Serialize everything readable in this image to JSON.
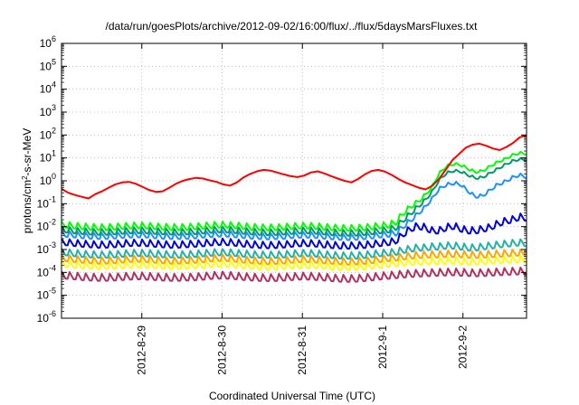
{
  "chart_data": {
    "type": "line",
    "title": "/data/run/goesPlots/archive/2012-09-02/16:00/flux/../flux/5daysMarsFluxes.txt",
    "xlabel": "Coordinated Universal Time (UTC)",
    "ylabel": "protons/cm2-s-sr-MeV",
    "ylabel_parts": {
      "pre": "protons/cm",
      "sup": "2",
      "post": "-s-sr-MeV"
    },
    "y_scale": "log",
    "ylim_exponents": [
      -6,
      6
    ],
    "y_tick_base": "10",
    "y_tick_exponents": [
      "-6",
      "-5",
      "-4",
      "-3",
      "-2",
      "-1",
      "0",
      "1",
      "2",
      "3",
      "4",
      "5",
      "6"
    ],
    "xlim_days": [
      "2012-08-28",
      "2012-09-02T19:00"
    ],
    "x_ticks": [
      "2012-8-29",
      "2012-8-30",
      "2012-8-31",
      "2012-9-1",
      "2012-9-2"
    ],
    "grid": true,
    "legend": "none",
    "series": [
      {
        "color": "#ff0000",
        "values": [
          0.45,
          0.3,
          0.24,
          0.2,
          0.17,
          0.26,
          0.35,
          0.5,
          0.7,
          0.85,
          0.9,
          0.75,
          0.55,
          0.4,
          0.33,
          0.35,
          0.5,
          0.75,
          1,
          1.2,
          1.35,
          1.25,
          1.05,
          0.9,
          0.7,
          0.62,
          0.85,
          1.4,
          2,
          2.6,
          3,
          2.8,
          2.3,
          1.9,
          1.6,
          1.45,
          1.7,
          2.3,
          2.6,
          2.1,
          1.6,
          1.25,
          1,
          0.85,
          1.2,
          1.9,
          2.7,
          3,
          2.5,
          1.8,
          1.2,
          0.85,
          0.65,
          0.5,
          0.42,
          0.6,
          1.2,
          3,
          8,
          15,
          28,
          38,
          42,
          34,
          26,
          22,
          30,
          45,
          80,
          95
        ]
      },
      {
        "color": "#00ff00",
        "base": [
          0.0095,
          0.0088,
          0.0082,
          0.0077,
          0.0074,
          0.0072,
          0.0072,
          0.0074,
          0.0078,
          0.0082,
          0.0085,
          0.0085,
          0.0082,
          0.0078,
          0.0075,
          0.0073,
          0.0072,
          0.0073,
          0.0076,
          0.008,
          0.0085,
          0.009,
          0.0092,
          0.009,
          0.0086,
          0.008,
          0.0075,
          0.0072,
          0.007,
          0.007,
          0.0072,
          0.0076,
          0.008,
          0.0083,
          0.0083,
          0.008,
          0.0075,
          0.0071,
          0.0068,
          0.0066,
          0.0066,
          0.0068,
          0.0072,
          0.0078,
          0.0085,
          0.009,
          0.012,
          0.03,
          0.06,
          0.1,
          0.2,
          0.5,
          2,
          4,
          5,
          4.5,
          3,
          2.2,
          2.5,
          4,
          6,
          8,
          12,
          15,
          14
        ],
        "amp": [
          1.8,
          1.8,
          1.8,
          1.8,
          1.8,
          1.8,
          1.8,
          1.8,
          1.8,
          1.8,
          1.8,
          1.8,
          1.8,
          1.8,
          1.8,
          1.8,
          1.8,
          1.8,
          1.8,
          1.8,
          1.8,
          1.8,
          1.8,
          1.8,
          1.8,
          1.8,
          1.8,
          1.8,
          1.8,
          1.8,
          1.8,
          1.8,
          1.8,
          1.8,
          1.8,
          1.8,
          1.8,
          1.8,
          1.8,
          1.8,
          1.8,
          1.8,
          1.8,
          1.8,
          1.8,
          1.8,
          1.8,
          1.7,
          1.6,
          1.5,
          1.4,
          1.3,
          1.25,
          1.25,
          1.25,
          1.25,
          1.25,
          1.25,
          1.25,
          1.25,
          1.25,
          1.25,
          1.25,
          1.25,
          1.25
        ]
      },
      {
        "color": "#009a66",
        "base": [
          0.0058,
          0.0054,
          0.005,
          0.0047,
          0.0045,
          0.0044,
          0.0044,
          0.0045,
          0.0048,
          0.005,
          0.0052,
          0.0052,
          0.005,
          0.0048,
          0.0046,
          0.0045,
          0.0044,
          0.0045,
          0.0046,
          0.0049,
          0.0052,
          0.0055,
          0.0056,
          0.0055,
          0.0052,
          0.0049,
          0.0046,
          0.0044,
          0.0043,
          0.0043,
          0.0044,
          0.0046,
          0.0049,
          0.0051,
          0.0051,
          0.0049,
          0.0046,
          0.0043,
          0.0041,
          0.004,
          0.004,
          0.0041,
          0.0044,
          0.0047,
          0.0052,
          0.0055,
          0.007,
          0.015,
          0.03,
          0.06,
          0.12,
          0.3,
          1,
          2,
          2.5,
          2.3,
          1.6,
          1.2,
          1.3,
          2,
          3,
          4.5,
          6.5,
          8,
          7.5
        ],
        "amp": [
          1.8,
          1.8,
          1.8,
          1.8,
          1.8,
          1.8,
          1.8,
          1.8,
          1.8,
          1.8,
          1.8,
          1.8,
          1.8,
          1.8,
          1.8,
          1.8,
          1.8,
          1.8,
          1.8,
          1.8,
          1.8,
          1.8,
          1.8,
          1.8,
          1.8,
          1.8,
          1.8,
          1.8,
          1.8,
          1.8,
          1.8,
          1.8,
          1.8,
          1.8,
          1.8,
          1.8,
          1.8,
          1.8,
          1.8,
          1.8,
          1.8,
          1.8,
          1.8,
          1.8,
          1.8,
          1.8,
          1.8,
          1.7,
          1.6,
          1.5,
          1.4,
          1.3,
          1.25,
          1.25,
          1.25,
          1.25,
          1.25,
          1.25,
          1.25,
          1.25,
          1.25,
          1.25,
          1.25,
          1.25,
          1.25
        ]
      },
      {
        "color": "#1e90ff",
        "base": [
          0.0038,
          0.0035,
          0.0033,
          0.0031,
          0.003,
          0.0029,
          0.0029,
          0.003,
          0.0031,
          0.0033,
          0.0034,
          0.0034,
          0.0033,
          0.0031,
          0.003,
          0.0029,
          0.0029,
          0.0029,
          0.003,
          0.0032,
          0.0034,
          0.0036,
          0.0037,
          0.0036,
          0.0034,
          0.0032,
          0.003,
          0.0029,
          0.0028,
          0.0028,
          0.0029,
          0.003,
          0.0032,
          0.0033,
          0.0033,
          0.0032,
          0.003,
          0.0028,
          0.0027,
          0.0026,
          0.0026,
          0.0027,
          0.0029,
          0.0031,
          0.0034,
          0.0036,
          0.004,
          0.008,
          0.015,
          0.03,
          0.06,
          0.15,
          0.4,
          0.6,
          0.7,
          0.6,
          0.3,
          0.18,
          0.2,
          0.35,
          0.6,
          0.8,
          1.2,
          1.6,
          1.3
        ],
        "amp": [
          1.8,
          1.8,
          1.8,
          1.8,
          1.8,
          1.8,
          1.8,
          1.8,
          1.8,
          1.8,
          1.8,
          1.8,
          1.8,
          1.8,
          1.8,
          1.8,
          1.8,
          1.8,
          1.8,
          1.8,
          1.8,
          1.8,
          1.8,
          1.8,
          1.8,
          1.8,
          1.8,
          1.8,
          1.8,
          1.8,
          1.8,
          1.8,
          1.8,
          1.8,
          1.8,
          1.8,
          1.8,
          1.8,
          1.8,
          1.8,
          1.8,
          1.8,
          1.8,
          1.8,
          1.8,
          1.8,
          1.8,
          1.7,
          1.6,
          1.5,
          1.4,
          1.3,
          1.35,
          1.35,
          1.35,
          1.35,
          1.35,
          1.35,
          1.35,
          1.35,
          1.35,
          1.35,
          1.35,
          1.35,
          1.35
        ]
      },
      {
        "color": "#0000dd",
        "base": [
          0.0016,
          0.0015,
          0.0014,
          0.0013,
          0.00125,
          0.0012,
          0.0012,
          0.00125,
          0.0013,
          0.0014,
          0.00145,
          0.00145,
          0.0014,
          0.0013,
          0.00125,
          0.0012,
          0.0012,
          0.00125,
          0.0013,
          0.00135,
          0.00145,
          0.00155,
          0.0016,
          0.00155,
          0.00145,
          0.00135,
          0.00125,
          0.0012,
          0.00115,
          0.00115,
          0.0012,
          0.00125,
          0.00135,
          0.0014,
          0.0014,
          0.00135,
          0.00125,
          0.00118,
          0.00112,
          0.0011,
          0.0011,
          0.00115,
          0.0012,
          0.0013,
          0.00145,
          0.00155,
          0.0018,
          0.0035,
          0.006,
          0.008,
          0.007,
          0.005,
          0.005,
          0.007,
          0.008,
          0.006,
          0.005,
          0.005,
          0.006,
          0.007,
          0.01,
          0.013,
          0.015,
          0.02,
          0.018
        ],
        "amp": [
          1.9,
          1.9,
          1.9,
          1.9,
          1.9,
          1.9,
          1.9,
          1.9,
          1.9,
          1.9,
          1.9,
          1.9,
          1.9,
          1.9,
          1.9,
          1.9,
          1.9,
          1.9,
          1.9,
          1.9,
          1.9,
          1.9,
          1.9,
          1.9,
          1.9,
          1.9,
          1.9,
          1.9,
          1.9,
          1.9,
          1.9,
          1.9,
          1.9,
          1.9,
          1.9,
          1.9,
          1.9,
          1.9,
          1.9,
          1.9,
          1.9,
          1.9,
          1.9,
          1.9,
          1.9,
          1.9,
          1.9,
          1.9,
          1.9,
          1.9,
          1.9,
          1.9,
          1.9,
          1.9,
          1.9,
          1.9,
          1.9,
          1.9,
          1.9,
          1.9,
          1.9,
          1.9,
          1.9,
          1.9,
          1.9
        ]
      },
      {
        "color": "#20b2aa",
        "base": [
          0.00058,
          0.00054,
          0.0005,
          0.00047,
          0.00045,
          0.00044,
          0.00044,
          0.00045,
          0.00047,
          0.0005,
          0.00052,
          0.00052,
          0.0005,
          0.00048,
          0.00046,
          0.00045,
          0.00044,
          0.00045,
          0.00046,
          0.00049,
          0.00052,
          0.00055,
          0.00056,
          0.00055,
          0.00052,
          0.00049,
          0.00046,
          0.00044,
          0.00043,
          0.00043,
          0.00044,
          0.00046,
          0.00049,
          0.00051,
          0.00051,
          0.00049,
          0.00046,
          0.00043,
          0.00041,
          0.0004,
          0.0004,
          0.00041,
          0.00044,
          0.00047,
          0.00052,
          0.00055,
          0.00058,
          0.0007,
          0.0008,
          0.0009,
          0.0009,
          0.001,
          0.001,
          0.0011,
          0.0011,
          0.001,
          0.0009,
          0.0009,
          0.001,
          0.0011,
          0.0012,
          0.0013,
          0.0014,
          0.0015,
          0.0014
        ],
        "amp": [
          1.9,
          1.9,
          1.9,
          1.9,
          1.9,
          1.9,
          1.9,
          1.9,
          1.9,
          1.9,
          1.9,
          1.9,
          1.9,
          1.9,
          1.9,
          1.9,
          1.9,
          1.9,
          1.9,
          1.9,
          1.9,
          1.9,
          1.9,
          1.9,
          1.9,
          1.9,
          1.9,
          1.9,
          1.9,
          1.9,
          1.9,
          1.9,
          1.9,
          1.9,
          1.9,
          1.9,
          1.9,
          1.9,
          1.9,
          1.9,
          1.9,
          1.9,
          1.9,
          1.9,
          1.9,
          1.9,
          1.9,
          1.9,
          1.9,
          1.9,
          1.9,
          1.9,
          1.9,
          1.9,
          1.9,
          1.9,
          1.9,
          1.9,
          1.9,
          1.9,
          1.9,
          1.9,
          1.9,
          1.9,
          1.9
        ]
      },
      {
        "color": "#ffa500",
        "base": [
          0.00032,
          0.0003,
          0.00028,
          0.00026,
          0.00025,
          0.00024,
          0.00024,
          0.00025,
          0.00026,
          0.00028,
          0.00029,
          0.00029,
          0.00028,
          0.00026,
          0.00025,
          0.00024,
          0.00024,
          0.00025,
          0.00026,
          0.00027,
          0.00029,
          0.00031,
          0.00032,
          0.00031,
          0.00029,
          0.00027,
          0.00025,
          0.00024,
          0.00023,
          0.00023,
          0.00024,
          0.00025,
          0.00027,
          0.00028,
          0.00028,
          0.00027,
          0.00025,
          0.00024,
          0.00023,
          0.00022,
          0.00022,
          0.00023,
          0.00024,
          0.00026,
          0.00029,
          0.00031,
          0.00033,
          0.00036,
          0.0004,
          0.00042,
          0.00044,
          0.00045,
          0.00046,
          0.00047,
          0.00048,
          0.00046,
          0.00044,
          0.00043,
          0.00044,
          0.00046,
          0.00048,
          0.0005,
          0.00052,
          0.00054,
          0.00052
        ],
        "amp": [
          1.9,
          1.9,
          1.9,
          1.9,
          1.9,
          1.9,
          1.9,
          1.9,
          1.9,
          1.9,
          1.9,
          1.9,
          1.9,
          1.9,
          1.9,
          1.9,
          1.9,
          1.9,
          1.9,
          1.9,
          1.9,
          1.9,
          1.9,
          1.9,
          1.9,
          1.9,
          1.9,
          1.9,
          1.9,
          1.9,
          1.9,
          1.9,
          1.9,
          1.9,
          1.9,
          1.9,
          1.9,
          1.9,
          1.9,
          1.9,
          1.9,
          1.9,
          1.9,
          1.9,
          1.9,
          1.9,
          1.9,
          1.9,
          1.9,
          1.9,
          1.9,
          1.9,
          1.9,
          1.9,
          1.9,
          1.9,
          1.9,
          1.9,
          1.9,
          1.9,
          1.9,
          1.9,
          1.9,
          1.9,
          1.9
        ]
      },
      {
        "color": "#ffff00",
        "base": [
          0.00018,
          0.00017,
          0.00016,
          0.00015,
          0.000145,
          0.00014,
          0.00014,
          0.000145,
          0.00015,
          0.00016,
          0.000165,
          0.000165,
          0.00016,
          0.00015,
          0.000145,
          0.00014,
          0.00014,
          0.000145,
          0.00015,
          0.000155,
          0.000165,
          0.000175,
          0.00018,
          0.000175,
          0.000165,
          0.000155,
          0.000145,
          0.00014,
          0.000135,
          0.000135,
          0.00014,
          0.000145,
          0.000155,
          0.00016,
          0.00016,
          0.000155,
          0.000145,
          0.000138,
          0.000132,
          0.00013,
          0.00013,
          0.000135,
          0.00014,
          0.00015,
          0.000165,
          0.000175,
          0.00019,
          0.0002,
          0.00021,
          0.00022,
          0.00022,
          0.00023,
          0.00023,
          0.00024,
          0.00024,
          0.00023,
          0.00022,
          0.00022,
          0.00023,
          0.00024,
          0.00025,
          0.00026,
          0.00027,
          0.00028,
          0.00027
        ],
        "amp": [
          1.9,
          1.9,
          1.9,
          1.9,
          1.9,
          1.9,
          1.9,
          1.9,
          1.9,
          1.9,
          1.9,
          1.9,
          1.9,
          1.9,
          1.9,
          1.9,
          1.9,
          1.9,
          1.9,
          1.9,
          1.9,
          1.9,
          1.9,
          1.9,
          1.9,
          1.9,
          1.9,
          1.9,
          1.9,
          1.9,
          1.9,
          1.9,
          1.9,
          1.9,
          1.9,
          1.9,
          1.9,
          1.9,
          1.9,
          1.9,
          1.9,
          1.9,
          1.9,
          1.9,
          1.9,
          1.9,
          1.9,
          1.9,
          1.9,
          1.9,
          1.9,
          1.9,
          1.9,
          1.9,
          1.9,
          1.9,
          1.9,
          1.9,
          1.9,
          1.9,
          1.9,
          1.9,
          1.9,
          1.9,
          1.9
        ]
      },
      {
        "color": "#b03060",
        "base": [
          5.5e-05,
          5.2e-05,
          4.9e-05,
          4.6e-05,
          4.4e-05,
          4.3e-05,
          4.3e-05,
          4.4e-05,
          4.6e-05,
          4.8e-05,
          5e-05,
          5e-05,
          4.8e-05,
          4.6e-05,
          4.4e-05,
          4.3e-05,
          4.3e-05,
          4.4e-05,
          4.5e-05,
          4.7e-05,
          5e-05,
          5.3e-05,
          5.4e-05,
          5.3e-05,
          5e-05,
          4.7e-05,
          4.5e-05,
          4.3e-05,
          4.2e-05,
          4.2e-05,
          4.3e-05,
          4.5e-05,
          4.7e-05,
          4.9e-05,
          4.9e-05,
          4.7e-05,
          4.5e-05,
          4.2e-05,
          4e-05,
          3.9e-05,
          3.9e-05,
          4e-05,
          4.3e-05,
          4.6e-05,
          5e-05,
          5.3e-05,
          5.6e-05,
          6e-05,
          6.4e-05,
          6.6e-05,
          6.8e-05,
          7e-05,
          7.2e-05,
          7.4e-05,
          7.5e-05,
          7.2e-05,
          7e-05,
          6.8e-05,
          7e-05,
          7.2e-05,
          7.5e-05,
          7.8e-05,
          8e-05,
          8.2e-05,
          8e-05
        ],
        "amp": [
          2.0,
          2.0,
          2.0,
          2.0,
          2.0,
          2.0,
          2.0,
          2.0,
          2.0,
          2.0,
          2.0,
          2.0,
          2.0,
          2.0,
          2.0,
          2.0,
          2.0,
          2.0,
          2.0,
          2.0,
          2.0,
          2.0,
          2.0,
          2.0,
          2.0,
          2.0,
          2.0,
          2.0,
          2.0,
          2.0,
          2.0,
          2.0,
          2.0,
          2.0,
          2.0,
          2.0,
          2.0,
          2.0,
          2.0,
          2.0,
          2.0,
          2.0,
          2.0,
          2.0,
          2.0,
          2.0,
          2.0,
          2.0,
          2.0,
          2.0,
          2.0,
          2.0,
          2.0,
          2.0,
          2.0,
          2.0,
          2.0,
          2.0,
          2.0,
          2.0,
          2.0,
          2.0,
          2.0,
          2.0,
          2.0
        ]
      }
    ]
  }
}
